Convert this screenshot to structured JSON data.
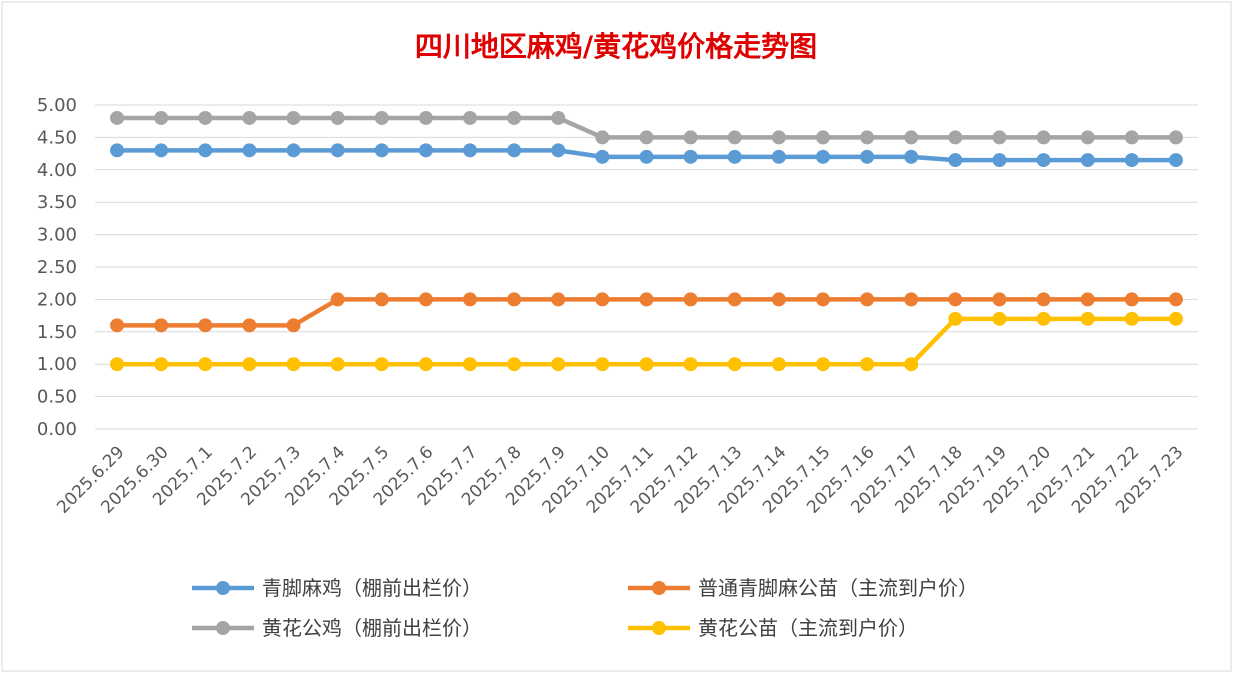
{
  "chart_data": {
    "type": "line",
    "title": "四川地区麻鸡/黄花鸡价格走势图",
    "xlabel": "",
    "ylabel": "",
    "ylim": [
      0,
      5
    ],
    "ytick_labels": [
      "0.00",
      "0.50",
      "1.00",
      "1.50",
      "2.00",
      "2.50",
      "3.00",
      "3.50",
      "4.00",
      "4.50",
      "5.00"
    ],
    "categories": [
      "2025.6.29",
      "2025.6.30",
      "2025.7.1",
      "2025.7.2",
      "2025.7.3",
      "2025.7.4",
      "2025.7.5",
      "2025.7.6",
      "2025.7.7",
      "2025.7.8",
      "2025.7.9",
      "2025.7.10",
      "2025.7.11",
      "2025.7.12",
      "2025.7.13",
      "2025.7.14",
      "2025.7.15",
      "2025.7.16",
      "2025.7.17",
      "2025.7.18",
      "2025.7.19",
      "2025.7.20",
      "2025.7.21",
      "2025.7.22",
      "2025.7.23"
    ],
    "grid": true,
    "legend_position": "bottom",
    "series": [
      {
        "name": "青脚麻鸡（棚前出栏价）",
        "color": "#5b9bd5",
        "values": [
          4.3,
          4.3,
          4.3,
          4.3,
          4.3,
          4.3,
          4.3,
          4.3,
          4.3,
          4.3,
          4.3,
          4.2,
          4.2,
          4.2,
          4.2,
          4.2,
          4.2,
          4.2,
          4.2,
          4.15,
          4.15,
          4.15,
          4.15,
          4.15,
          4.15
        ]
      },
      {
        "name": "普通青脚麻公苗（主流到户价）",
        "color": "#ed7d31",
        "values": [
          1.6,
          1.6,
          1.6,
          1.6,
          1.6,
          2.0,
          2.0,
          2.0,
          2.0,
          2.0,
          2.0,
          2.0,
          2.0,
          2.0,
          2.0,
          2.0,
          2.0,
          2.0,
          2.0,
          2.0,
          2.0,
          2.0,
          2.0,
          2.0,
          2.0
        ]
      },
      {
        "name": "黄花公鸡（棚前出栏价）",
        "color": "#a5a5a5",
        "values": [
          4.8,
          4.8,
          4.8,
          4.8,
          4.8,
          4.8,
          4.8,
          4.8,
          4.8,
          4.8,
          4.8,
          4.5,
          4.5,
          4.5,
          4.5,
          4.5,
          4.5,
          4.5,
          4.5,
          4.5,
          4.5,
          4.5,
          4.5,
          4.5,
          4.5
        ]
      },
      {
        "name": "黄花公苗（主流到户价）",
        "color": "#ffc000",
        "values": [
          1.0,
          1.0,
          1.0,
          1.0,
          1.0,
          1.0,
          1.0,
          1.0,
          1.0,
          1.0,
          1.0,
          1.0,
          1.0,
          1.0,
          1.0,
          1.0,
          1.0,
          1.0,
          1.0,
          1.7,
          1.7,
          1.7,
          1.7,
          1.7,
          1.7
        ]
      }
    ]
  }
}
